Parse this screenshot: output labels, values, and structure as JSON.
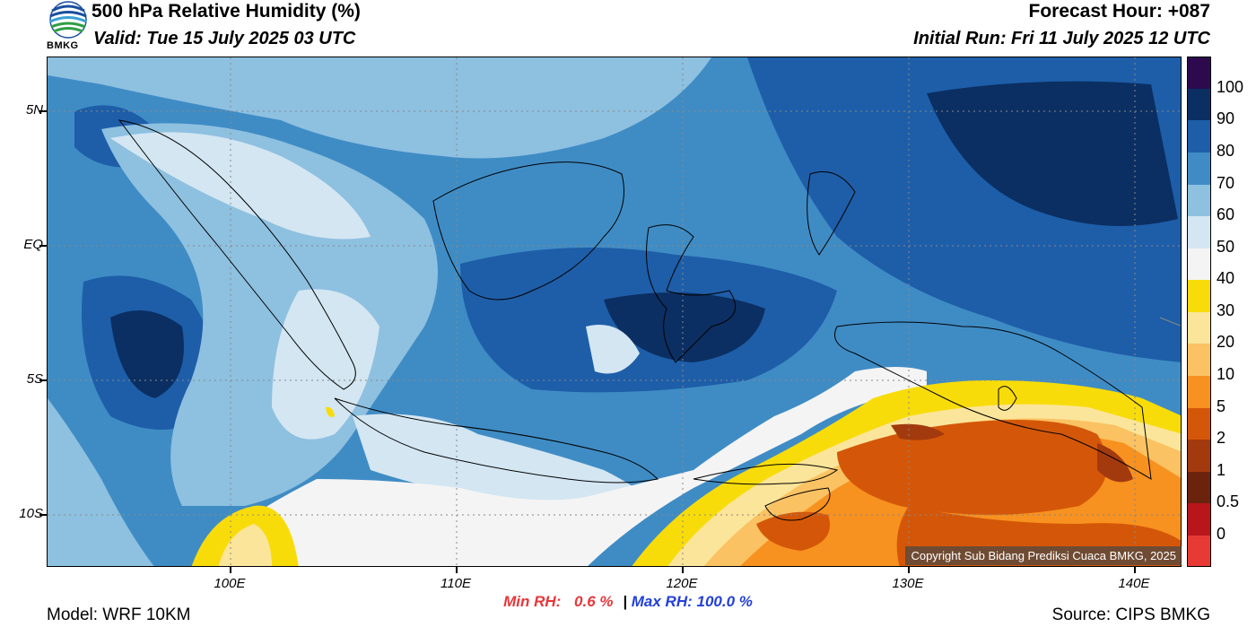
{
  "header": {
    "title": "500 hPa Relative Humidity (%)",
    "valid": "Valid: Tue 15 July 2025 03 UTC",
    "forecast_hour": "Forecast Hour: +087",
    "initial_run": "Initial Run: Fri 11 July 2025 12 UTC",
    "logo_text": "BMKG"
  },
  "axes": {
    "lat_labels": [
      "5N",
      "EQ",
      "5S",
      "10S"
    ],
    "lon_labels": [
      "100E",
      "110E",
      "120E",
      "130E",
      "140E"
    ]
  },
  "colorbar": {
    "labels": [
      "100",
      "90",
      "80",
      "70",
      "60",
      "50",
      "40",
      "30",
      "20",
      "10",
      "5",
      "2",
      "1",
      "0.5",
      "0"
    ],
    "colors": [
      "#2d0a4e",
      "#0b2f63",
      "#1e5ea8",
      "#3f8cc5",
      "#8ec0e0",
      "#d3e6f2",
      "#f4f4f4",
      "#f8dc0a",
      "#fbe59a",
      "#fac262",
      "#f7911f",
      "#d45709",
      "#a33a0e",
      "#6b230d",
      "#b8161b",
      "#e83a35"
    ]
  },
  "stats": {
    "min_label": "Min RH:",
    "min_value": "0.6 %",
    "separator": "|",
    "max_label": "Max RH: 100.0 %"
  },
  "footer": {
    "model": "Model: WRF 10KM",
    "source": "Source: CIPS BMKG",
    "copyright": "Copyright Sub Bidang Prediksi Cuaca BMKG, 2025"
  }
}
